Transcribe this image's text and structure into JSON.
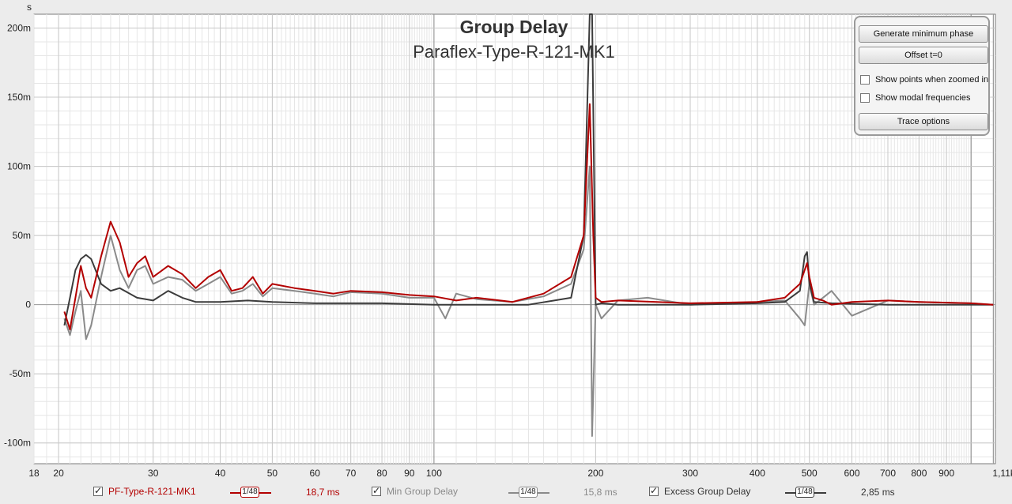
{
  "title": "Group Delay",
  "subtitle": "Paraflex-Type-R-121-MK1",
  "y_unit": "s",
  "options": {
    "generate_min_phase": "Generate minimum phase",
    "offset": "Offset t=0",
    "show_points": "Show points when zoomed in",
    "show_modal": "Show modal frequencies",
    "trace_options": "Trace options"
  },
  "legend": [
    {
      "name": "PF-Type-R-121-MK1",
      "smoothing": "1/48",
      "value": "18,7 ms",
      "color": "#b30000"
    },
    {
      "name": "Min Group Delay",
      "smoothing": "1/48",
      "value": "15,8 ms",
      "color": "#8a8a8a"
    },
    {
      "name": "Excess Group Delay",
      "smoothing": "1/48",
      "value": "2,85 ms",
      "color": "#3c3c3c"
    }
  ],
  "chart_data": {
    "type": "line",
    "title": "Group Delay",
    "subtitle": "Paraflex-Type-R-121-MK1",
    "ylabel": "s",
    "xscale": "log",
    "xlim": [
      18,
      1110
    ],
    "ylim": [
      -0.115,
      0.21
    ],
    "grid": true,
    "x_ticks": [
      "18",
      "20",
      "30",
      "40",
      "50",
      "60",
      "70",
      "80",
      "90",
      "100",
      "200",
      "300",
      "400",
      "500",
      "600",
      "700",
      "800",
      "900",
      "1,11kHz"
    ],
    "y_ticks": [
      "200m",
      "150m",
      "100m",
      "50m",
      "0",
      "-50m",
      "-100m"
    ],
    "series": [
      {
        "name": "PF-Type-R-121-MK1",
        "color": "#b30000",
        "x": [
          20.5,
          21,
          21.5,
          22,
          22.5,
          23,
          24,
          25,
          26,
          27,
          28,
          29,
          30,
          32,
          34,
          36,
          38,
          40,
          42,
          44,
          46,
          48,
          50,
          55,
          60,
          65,
          70,
          80,
          90,
          100,
          110,
          120,
          140,
          160,
          180,
          190,
          195,
          198,
          200,
          205,
          220,
          260,
          300,
          400,
          450,
          480,
          495,
          500,
          510,
          530,
          550,
          600,
          700,
          800,
          1000,
          1100
        ],
        "y": [
          -0.005,
          -0.018,
          0.005,
          0.028,
          0.012,
          0.005,
          0.035,
          0.06,
          0.045,
          0.02,
          0.03,
          0.035,
          0.02,
          0.028,
          0.022,
          0.012,
          0.02,
          0.025,
          0.01,
          0.012,
          0.02,
          0.008,
          0.015,
          0.012,
          0.01,
          0.008,
          0.01,
          0.009,
          0.007,
          0.006,
          0.003,
          0.005,
          0.002,
          0.008,
          0.02,
          0.05,
          0.145,
          0.05,
          0.005,
          0.002,
          0.003,
          0.002,
          0.001,
          0.002,
          0.005,
          0.015,
          0.03,
          0.02,
          0.005,
          0.003,
          0.0,
          0.002,
          0.003,
          0.002,
          0.001,
          0.0
        ]
      },
      {
        "name": "Min Group Delay",
        "color": "#8a8a8a",
        "x": [
          20.5,
          21,
          21.5,
          22,
          22.5,
          23,
          24,
          25,
          26,
          27,
          28,
          29,
          30,
          32,
          34,
          36,
          38,
          40,
          42,
          44,
          46,
          48,
          50,
          55,
          60,
          65,
          70,
          80,
          90,
          100,
          105,
          110,
          120,
          140,
          160,
          180,
          190,
          195,
          197,
          200,
          205,
          220,
          250,
          300,
          400,
          450,
          480,
          490,
          500,
          510,
          530,
          550,
          600,
          700,
          800,
          1000,
          1100
        ],
        "y": [
          -0.01,
          -0.022,
          -0.005,
          0.01,
          -0.025,
          -0.015,
          0.02,
          0.05,
          0.025,
          0.012,
          0.025,
          0.028,
          0.015,
          0.02,
          0.018,
          0.01,
          0.015,
          0.02,
          0.008,
          0.01,
          0.015,
          0.006,
          0.012,
          0.01,
          0.008,
          0.006,
          0.009,
          0.008,
          0.005,
          0.005,
          -0.01,
          0.008,
          0.004,
          0.002,
          0.006,
          0.015,
          0.04,
          0.1,
          -0.095,
          0.0,
          -0.01,
          0.003,
          0.005,
          0.0,
          0.002,
          0.003,
          -0.01,
          -0.015,
          0.015,
          0.0,
          0.005,
          0.01,
          -0.008,
          0.003,
          0.002,
          0.001,
          0.0
        ]
      },
      {
        "name": "Excess Group Delay",
        "color": "#3c3c3c",
        "x": [
          20.5,
          21,
          21.5,
          22,
          22.5,
          23,
          24,
          25,
          26,
          28,
          30,
          32,
          34,
          36,
          40,
          45,
          50,
          60,
          70,
          80,
          100,
          150,
          180,
          190,
          195,
          197,
          200,
          205,
          220,
          300,
          400,
          450,
          480,
          490,
          495,
          500,
          510,
          550,
          700,
          1100
        ],
        "y": [
          -0.015,
          0.005,
          0.025,
          0.033,
          0.036,
          0.033,
          0.015,
          0.01,
          0.012,
          0.005,
          0.003,
          0.01,
          0.005,
          0.002,
          0.002,
          0.003,
          0.002,
          0.001,
          0.001,
          0.001,
          0.0,
          0.0,
          0.005,
          0.05,
          0.21,
          0.21,
          0.0,
          0.001,
          0.0,
          0.0,
          0.001,
          0.002,
          0.01,
          0.035,
          0.038,
          0.015,
          0.002,
          0.001,
          0.0,
          0.0
        ]
      }
    ]
  }
}
